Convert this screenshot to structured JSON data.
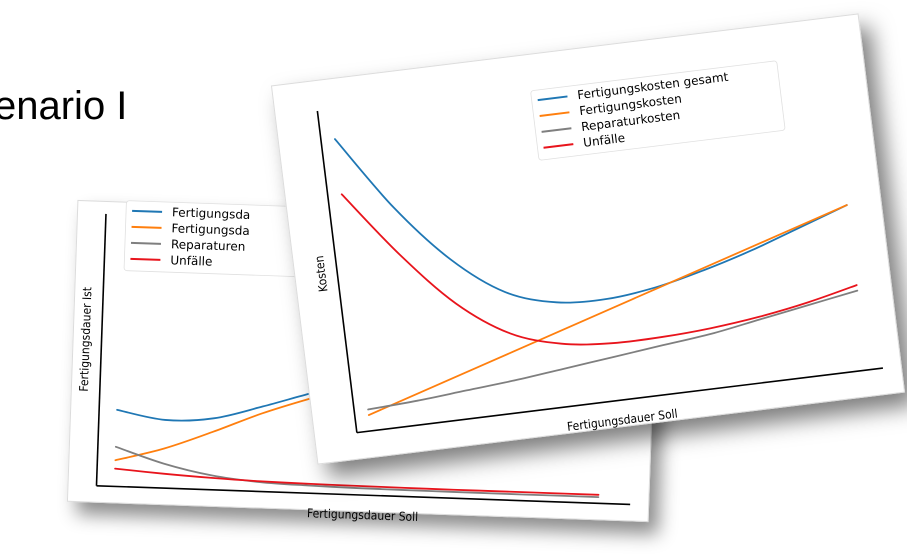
{
  "slide": {
    "title": "enario I"
  },
  "chart_data": [
    {
      "type": "line",
      "title": "",
      "xlabel": "Fertigungsdauer Soll",
      "ylabel": "Fertigungsdauer Ist",
      "x": [
        0,
        0.1,
        0.2,
        0.3,
        0.4,
        0.5,
        0.6,
        0.7,
        0.8,
        0.9,
        1.0
      ],
      "series": [
        {
          "name": "Fertigungsda",
          "color": "#1f77b4",
          "values": [
            0.42,
            0.37,
            0.39,
            0.47,
            0.56,
            0.64,
            0.73,
            0.81,
            0.89,
            0.96,
            1.0
          ]
        },
        {
          "name": "Fertigungsda",
          "color": "#ff7f0e",
          "values": [
            0.12,
            0.2,
            0.31,
            0.43,
            0.53,
            0.62,
            0.71,
            0.79,
            0.87,
            0.94,
            0.99
          ]
        },
        {
          "name": "Reparaturen",
          "color": "#7f7f7f",
          "values": [
            0.2,
            0.11,
            0.05,
            0.02,
            0.01,
            0.005,
            0.003,
            0.002,
            0.001,
            0.001,
            0.001
          ]
        },
        {
          "name": "Unfälle",
          "color": "#e8141c",
          "values": [
            0.07,
            0.05,
            0.035,
            0.025,
            0.02,
            0.018,
            0.016,
            0.015,
            0.015,
            0.015,
            0.015
          ]
        }
      ],
      "legend": "top-left",
      "grid": false
    },
    {
      "type": "line",
      "title": "",
      "xlabel": "Fertigungsdauer Soll",
      "ylabel": "Kosten",
      "x": [
        0,
        0.1,
        0.2,
        0.3,
        0.4,
        0.5,
        0.6,
        0.7,
        0.8,
        0.9,
        1.0
      ],
      "series": [
        {
          "name": "Fertigungskosten gesamt",
          "color": "#1f77b4",
          "values": [
            1.0,
            0.73,
            0.52,
            0.38,
            0.32,
            0.31,
            0.33,
            0.37,
            0.42,
            0.48,
            0.54
          ]
        },
        {
          "name": "Fertigungskosten",
          "color": "#ff7f0e",
          "values": null
        },
        {
          "name": "Reparaturkosten",
          "color": "#7f7f7f",
          "values": [
            0.02,
            0.03,
            0.045,
            0.06,
            0.08,
            0.1,
            0.12,
            0.14,
            0.17,
            0.2,
            0.23
          ]
        },
        {
          "name": "Unfälle",
          "color": "#e8141c",
          "values": [
            0.8,
            0.56,
            0.36,
            0.23,
            0.17,
            0.15,
            0.15,
            0.16,
            0.18,
            0.21,
            0.25
          ]
        }
      ],
      "legend": "top-right",
      "grid": false
    }
  ]
}
